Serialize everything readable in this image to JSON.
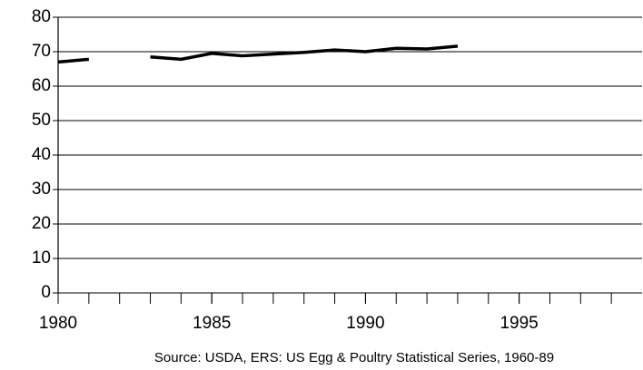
{
  "chart_data": {
    "type": "line",
    "caption": "Source: USDA, ERS: US Egg & Poultry Statistical Series, 1960-89",
    "x": [
      1980,
      1981,
      1982,
      1983,
      1984,
      1985,
      1986,
      1987,
      1988,
      1989,
      1990,
      1991,
      1992,
      1993
    ],
    "values": [
      67,
      67.8,
      null,
      68.5,
      67.8,
      69.5,
      68.8,
      69.3,
      69.8,
      70.5,
      70,
      71,
      70.8,
      71.6
    ],
    "color": "#000000",
    "xlim": [
      1980,
      1999
    ],
    "xticks": [
      1980,
      1985,
      1990,
      1995
    ],
    "xminor_ticks": [
      1980,
      1981,
      1982,
      1983,
      1984,
      1985,
      1986,
      1987,
      1988,
      1989,
      1990,
      1991,
      1992,
      1993,
      1994,
      1995,
      1996,
      1997,
      1998
    ],
    "ylim": [
      0,
      80
    ],
    "yticks": [
      0,
      10,
      20,
      30,
      40,
      50,
      60,
      70,
      80
    ],
    "grid": true
  }
}
